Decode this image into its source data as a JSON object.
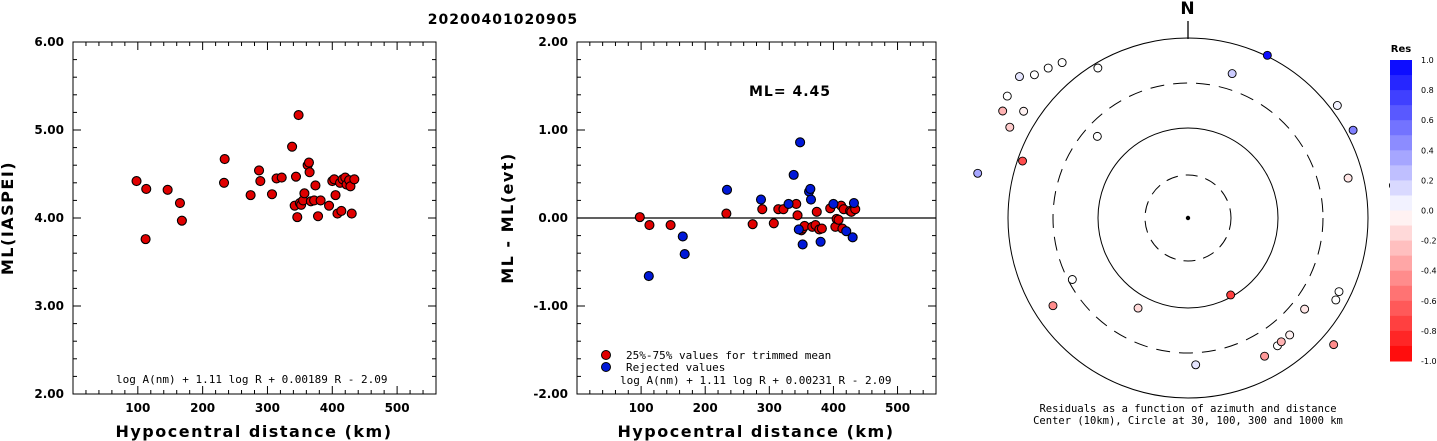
{
  "event_id": "20200401020905",
  "chart_data": [
    {
      "type": "scatter",
      "xlabel": "Hypocentral distance (km)",
      "ylabel": "ML(IASPEI)",
      "xlim": [
        0,
        560
      ],
      "ylim": [
        2.0,
        6.0
      ],
      "xticks": [
        "100",
        "200",
        "300",
        "400",
        "500"
      ],
      "yticks": [
        "2.00",
        "3.00",
        "4.00",
        "5.00",
        "6.00"
      ],
      "formula": "log A(nm) + 1.11 log R + 0.00189 R - 2.09",
      "color": "#e00000",
      "points": [
        [
          98,
          4.42
        ],
        [
          112,
          3.76
        ],
        [
          113,
          4.33
        ],
        [
          146,
          4.32
        ],
        [
          165,
          4.17
        ],
        [
          168,
          3.97
        ],
        [
          233,
          4.4
        ],
        [
          234,
          4.67
        ],
        [
          274,
          4.26
        ],
        [
          287,
          4.54
        ],
        [
          289,
          4.42
        ],
        [
          307,
          4.27
        ],
        [
          314,
          4.45
        ],
        [
          322,
          4.46
        ],
        [
          338,
          4.81
        ],
        [
          342,
          4.14
        ],
        [
          344,
          4.47
        ],
        [
          346,
          4.01
        ],
        [
          348,
          5.17
        ],
        [
          350,
          4.17
        ],
        [
          352,
          4.15
        ],
        [
          355,
          4.2
        ],
        [
          357,
          4.28
        ],
        [
          362,
          4.6
        ],
        [
          364,
          4.63
        ],
        [
          365,
          4.52
        ],
        [
          367,
          4.19
        ],
        [
          372,
          4.2
        ],
        [
          374,
          4.37
        ],
        [
          378,
          4.02
        ],
        [
          382,
          4.2
        ],
        [
          395,
          4.14
        ],
        [
          400,
          4.42
        ],
        [
          403,
          4.44
        ],
        [
          405,
          4.26
        ],
        [
          408,
          4.05
        ],
        [
          412,
          4.4
        ],
        [
          414,
          4.08
        ],
        [
          416,
          4.44
        ],
        [
          420,
          4.46
        ],
        [
          422,
          4.38
        ],
        [
          426,
          4.43
        ],
        [
          428,
          4.36
        ],
        [
          430,
          4.05
        ],
        [
          434,
          4.44
        ]
      ]
    },
    {
      "type": "scatter",
      "xlabel": "Hypocentral distance (km)",
      "ylabel": "ML - ML(evt)",
      "xlim": [
        0,
        560
      ],
      "ylim": [
        -2.0,
        2.0
      ],
      "xticks": [
        "100",
        "200",
        "300",
        "400",
        "500"
      ],
      "yticks": [
        "-2.00",
        "-1.00",
        "0.00",
        "1.00",
        "2.00"
      ],
      "annotation": "ML= 4.45",
      "formula": "log A(nm) + 1.11 log R + 0.00231 R - 2.09",
      "legend": [
        {
          "label": "25%-75% values for trimmed mean",
          "color": "#e00000"
        },
        {
          "label": "Rejected values",
          "color": "#0018d8"
        }
      ],
      "series": [
        {
          "color": "#e00000",
          "points": [
            [
              98,
              0.01
            ],
            [
              113,
              -0.08
            ],
            [
              146,
              -0.08
            ],
            [
              233,
              0.05
            ],
            [
              274,
              -0.07
            ],
            [
              289,
              0.1
            ],
            [
              307,
              -0.06
            ],
            [
              314,
              0.1
            ],
            [
              322,
              0.1
            ],
            [
              342,
              0.16
            ],
            [
              344,
              0.03
            ],
            [
              350,
              -0.14
            ],
            [
              352,
              -0.12
            ],
            [
              355,
              -0.09
            ],
            [
              367,
              -0.1
            ],
            [
              372,
              -0.08
            ],
            [
              374,
              0.07
            ],
            [
              378,
              -0.13
            ],
            [
              382,
              -0.12
            ],
            [
              395,
              0.11
            ],
            [
              403,
              -0.1
            ],
            [
              405,
              -0.01
            ],
            [
              408,
              -0.02
            ],
            [
              412,
              0.14
            ],
            [
              414,
              -0.12
            ],
            [
              416,
              0.1
            ],
            [
              426,
              0.08
            ],
            [
              428,
              0.07
            ],
            [
              434,
              0.1
            ]
          ]
        },
        {
          "color": "#0018d8",
          "points": [
            [
              112,
              -0.66
            ],
            [
              165,
              -0.21
            ],
            [
              168,
              -0.41
            ],
            [
              234,
              0.32
            ],
            [
              287,
              0.21
            ],
            [
              330,
              0.16
            ],
            [
              338,
              0.49
            ],
            [
              346,
              -0.13
            ],
            [
              348,
              0.86
            ],
            [
              352,
              -0.3
            ],
            [
              362,
              0.3
            ],
            [
              364,
              0.33
            ],
            [
              365,
              0.21
            ],
            [
              380,
              -0.27
            ],
            [
              400,
              0.16
            ],
            [
              420,
              -0.15
            ],
            [
              430,
              -0.22
            ],
            [
              432,
              0.17
            ]
          ]
        }
      ]
    }
  ],
  "polar": {
    "north_label": "N",
    "caption_line1": "Residuals as a function of azimuth and distance",
    "caption_line2": "Center (10km), Circle at 30, 100, 300 and 1000 km",
    "colorbar_title": "Res",
    "colorbar_ticks": [
      "1.0",
      "0.8",
      "0.6",
      "0.4",
      "0.2",
      "0.0",
      "-0.2",
      "-0.4",
      "-0.6",
      "-0.8",
      "-1.0"
    ],
    "stations": [
      {
        "az": 312,
        "dist": 122,
        "res": 0.0
      },
      {
        "az": 303,
        "dist": 196,
        "res": -0.05
      },
      {
        "az": 297,
        "dist": 200,
        "res": -0.2
      },
      {
        "az": 300,
        "dist": 214,
        "res": -0.3
      },
      {
        "az": 304,
        "dist": 218,
        "res": 0.0
      },
      {
        "az": 310,
        "dist": 220,
        "res": 0.1
      },
      {
        "az": 313,
        "dist": 210,
        "res": 0.0
      },
      {
        "az": 317,
        "dist": 205,
        "res": 0.0
      },
      {
        "az": 321,
        "dist": 200,
        "res": 0.0
      },
      {
        "az": 329,
        "dist": 175,
        "res": 0.0
      },
      {
        "az": 282,
        "dist": 215,
        "res": 0.35
      },
      {
        "az": 289,
        "dist": 175,
        "res": -0.7
      },
      {
        "az": 17,
        "dist": 151,
        "res": 0.2
      },
      {
        "az": 26,
        "dist": 181,
        "res": 0.95
      },
      {
        "az": 53,
        "dist": 187,
        "res": 0.05
      },
      {
        "az": 62,
        "dist": 187,
        "res": 0.5
      },
      {
        "az": 76,
        "dist": 165,
        "res": -0.1
      },
      {
        "az": 81,
        "dist": 208,
        "res": 0.0
      },
      {
        "az": 83,
        "dist": 215,
        "res": 0.3
      },
      {
        "az": 84,
        "dist": 209,
        "res": 0.15
      },
      {
        "az": 85,
        "dist": 217,
        "res": 0.0
      },
      {
        "az": 86,
        "dist": 210,
        "res": 0.6
      },
      {
        "az": 87,
        "dist": 214,
        "res": 0.0
      },
      {
        "az": 89,
        "dist": 210,
        "res": -0.3
      },
      {
        "az": 90,
        "dist": 213,
        "res": 0.0
      },
      {
        "az": 93,
        "dist": 207,
        "res": -0.35
      },
      {
        "az": 95,
        "dist": 212,
        "res": -0.15
      },
      {
        "az": 97,
        "dist": 212,
        "res": 0.0
      },
      {
        "az": 116,
        "dist": 168,
        "res": 0.0
      },
      {
        "az": 119,
        "dist": 169,
        "res": 0.0
      },
      {
        "az": 128,
        "dist": 148,
        "res": -0.1
      },
      {
        "az": 131,
        "dist": 193,
        "res": -0.45
      },
      {
        "az": 139,
        "dist": 155,
        "res": -0.05
      },
      {
        "az": 145,
        "dist": 156,
        "res": 0.0
      },
      {
        "az": 143,
        "dist": 155,
        "res": -0.3
      },
      {
        "az": 151,
        "dist": 158,
        "res": -0.4
      },
      {
        "az": 151,
        "dist": 88,
        "res": -0.75
      },
      {
        "az": 177,
        "dist": 147,
        "res": 0.1
      },
      {
        "az": 209,
        "dist": 103,
        "res": -0.15
      },
      {
        "az": 237,
        "dist": 161,
        "res": -0.45
      },
      {
        "az": 242,
        "dist": 131,
        "res": 0.0
      }
    ]
  }
}
